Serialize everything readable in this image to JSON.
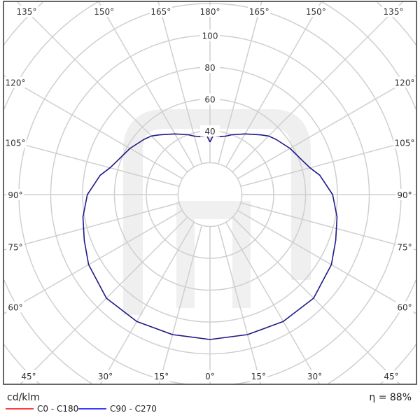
{
  "chart_data": {
    "type": "polar",
    "unit_label": "cd/klm",
    "efficiency_label": "η = 88%",
    "radial_ticks": [
      40,
      60,
      80,
      100
    ],
    "radial_grid_step": 20,
    "angle_grid_step": 15,
    "angle_labels": {
      "top": [
        "135°",
        "150°",
        "165°",
        "180°",
        "165°",
        "150°",
        "135°"
      ],
      "left": [
        "120°",
        "105°",
        "90°",
        "75°",
        "60°"
      ],
      "right": [
        "120°",
        "105°",
        "90°",
        "75°",
        "60°"
      ],
      "bottom": [
        "45°",
        "30°",
        "15°",
        "0°",
        "15°",
        "30°",
        "45°"
      ]
    },
    "grid": true,
    "symmetric": true,
    "series": [
      {
        "name": "C0 - C180",
        "color": "#ff3b3b",
        "gamma": [
          0,
          15,
          30,
          45,
          60,
          70,
          80,
          90,
          100,
          105,
          110,
          120,
          130,
          135,
          140,
          150,
          160,
          165,
          170,
          177,
          180
        ],
        "values": [
          91,
          91,
          92,
          92,
          88,
          84,
          81,
          77,
          70,
          65,
          62,
          58,
          54,
          52,
          49,
          44,
          40,
          38,
          37,
          37,
          33
        ]
      },
      {
        "name": "C90 - C270",
        "color": "#1c1c8c",
        "gamma": [
          0,
          15,
          30,
          45,
          60,
          70,
          80,
          90,
          100,
          105,
          110,
          120,
          130,
          135,
          140,
          150,
          160,
          165,
          170,
          177,
          180
        ],
        "values": [
          91,
          91,
          92,
          92,
          88,
          84,
          81,
          77,
          70,
          65,
          62,
          58,
          54,
          52,
          49,
          44,
          40,
          38,
          37,
          37,
          33
        ]
      }
    ]
  },
  "legend": {
    "items": [
      {
        "label": "C0 - C180",
        "color": "#ff3b3b"
      },
      {
        "label": "C90 - C270",
        "color": "#3b3bff"
      }
    ]
  }
}
